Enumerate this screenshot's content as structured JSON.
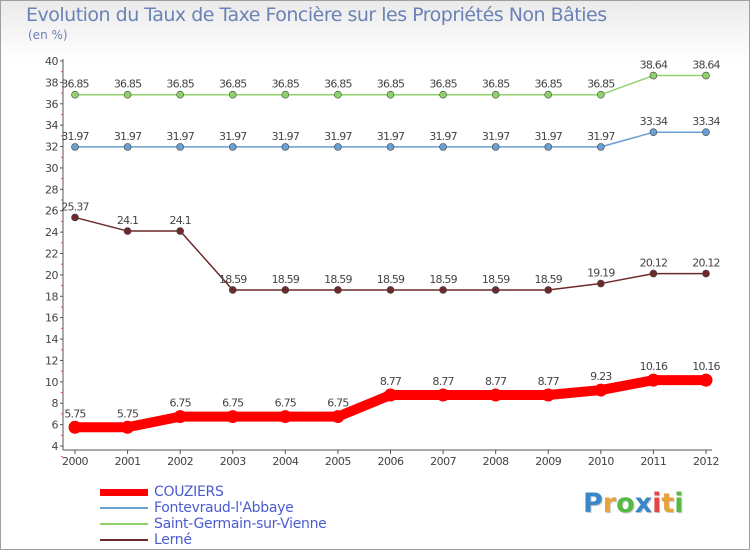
{
  "title": "Evolution du Taux de Taxe Foncière sur les Propriétés Non Bâties",
  "subtitle": "(en %)",
  "brand": {
    "name": "Proxiti",
    "letters": [
      "P",
      "r",
      "o",
      "x",
      "i",
      "t",
      "i"
    ],
    "colors": [
      "#3a87c8",
      "#e8a23a",
      "#57b847",
      "#3a87c8",
      "#e14848",
      "#e8a23a",
      "#57b847"
    ]
  },
  "chart_data": {
    "type": "line",
    "title": "Evolution du Taux de Taxe Foncière sur les Propriétés Non Bâties",
    "ylabel": "(en %)",
    "xlabel": "",
    "categories": [
      "2000",
      "2001",
      "2002",
      "2003",
      "2004",
      "2005",
      "2006",
      "2007",
      "2008",
      "2009",
      "2010",
      "2011",
      "2012"
    ],
    "ylim": [
      4,
      40
    ],
    "yticks": [
      4,
      6,
      8,
      10,
      12,
      14,
      16,
      18,
      20,
      22,
      24,
      26,
      28,
      30,
      32,
      34,
      36,
      38,
      40
    ],
    "grid": false,
    "legend": "bottom-left",
    "series": [
      {
        "name": "Saint-Germain-sur-Vienne",
        "color": "#8fd16a",
        "weight": "thin",
        "values": [
          36.85,
          36.85,
          36.85,
          36.85,
          36.85,
          36.85,
          36.85,
          36.85,
          36.85,
          36.85,
          36.85,
          38.64,
          38.64
        ],
        "labels": [
          "36.85",
          "36.85",
          "36.85",
          "36.85",
          "36.85",
          "36.85",
          "36.85",
          "36.85",
          "36.85",
          "36.85",
          "36.85",
          "38.64",
          "38.64"
        ]
      },
      {
        "name": "Fontevraud-l'Abbaye",
        "color": "#6a9fd1",
        "weight": "thin",
        "values": [
          31.97,
          31.97,
          31.97,
          31.97,
          31.97,
          31.97,
          31.97,
          31.97,
          31.97,
          31.97,
          31.97,
          33.34,
          33.34
        ],
        "labels": [
          "31.97",
          "31.97",
          "31.97",
          "31.97",
          "31.97",
          "31.97",
          "31.97",
          "31.97",
          "31.97",
          "31.97",
          "31.97",
          "33.34",
          "33.34"
        ]
      },
      {
        "name": "Lerné",
        "color": "#6e2a2a",
        "weight": "thin",
        "values": [
          25.37,
          24.1,
          24.1,
          18.59,
          18.59,
          18.59,
          18.59,
          18.59,
          18.59,
          18.59,
          19.19,
          20.12,
          20.12
        ],
        "labels": [
          "25.37",
          "24.1",
          "24.1",
          "18.59",
          "18.59",
          "18.59",
          "18.59",
          "18.59",
          "18.59",
          "18.59",
          "19.19",
          "20.12",
          "20.12"
        ]
      },
      {
        "name": "COUZIERS",
        "color": "#ff0000",
        "weight": "thick",
        "values": [
          5.75,
          5.75,
          6.75,
          6.75,
          6.75,
          6.75,
          8.77,
          8.77,
          8.77,
          8.77,
          9.23,
          10.16,
          10.16
        ],
        "labels": [
          "5.75",
          "5.75",
          "6.75",
          "6.75",
          "6.75",
          "6.75",
          "8.77",
          "8.77",
          "8.77",
          "8.77",
          "9.23",
          "10.16",
          "10.16"
        ]
      }
    ],
    "legend_order": [
      "COUZIERS",
      "Fontevraud-l'Abbaye",
      "Saint-Germain-sur-Vienne",
      "Lerné"
    ]
  }
}
